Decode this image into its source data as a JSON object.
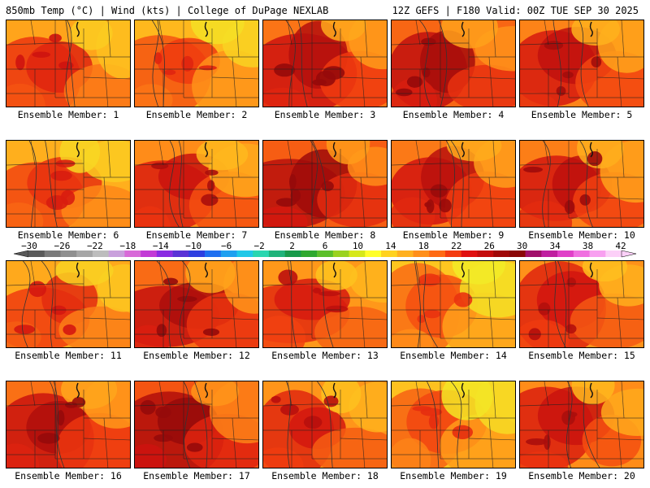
{
  "header": {
    "left": "850mb Temp (°C) | Wind (kts) | College of DuPage NEXLAB",
    "right": "12Z GEFS | F180 Valid: 00Z TUE SEP 30 2025"
  },
  "members": [
    {
      "label": "Ensemble Member: 1",
      "warmth": 0.62
    },
    {
      "label": "Ensemble Member: 2",
      "warmth": 0.55
    },
    {
      "label": "Ensemble Member: 3",
      "warmth": 0.75
    },
    {
      "label": "Ensemble Member: 4",
      "warmth": 0.78
    },
    {
      "label": "Ensemble Member: 5",
      "warmth": 0.72
    },
    {
      "label": "Ensemble Member: 6",
      "warmth": 0.58
    },
    {
      "label": "Ensemble Member: 7",
      "warmth": 0.7
    },
    {
      "label": "Ensemble Member: 8",
      "warmth": 0.8
    },
    {
      "label": "Ensemble Member: 9",
      "warmth": 0.74
    },
    {
      "label": "Ensemble Member: 10",
      "warmth": 0.73
    },
    {
      "label": "Ensemble Member: 11",
      "warmth": 0.6
    },
    {
      "label": "Ensemble Member: 12",
      "warmth": 0.77
    },
    {
      "label": "Ensemble Member: 13",
      "warmth": 0.66
    },
    {
      "label": "Ensemble Member: 14",
      "warmth": 0.5
    },
    {
      "label": "Ensemble Member: 15",
      "warmth": 0.68
    },
    {
      "label": "Ensemble Member: 16",
      "warmth": 0.76
    },
    {
      "label": "Ensemble Member: 17",
      "warmth": 0.82
    },
    {
      "label": "Ensemble Member: 18",
      "warmth": 0.67
    },
    {
      "label": "Ensemble Member: 19",
      "warmth": 0.52
    },
    {
      "label": "Ensemble Member: 20",
      "warmth": 0.7
    }
  ],
  "colorbar": {
    "labels": [
      "−30",
      "−26",
      "−22",
      "−18",
      "−14",
      "−10",
      "−6",
      "−2",
      "2",
      "6",
      "10",
      "14",
      "18",
      "22",
      "26",
      "30",
      "34",
      "38",
      "42"
    ],
    "colors": [
      "#5a5a5a",
      "#7a7a7a",
      "#8f8f8f",
      "#a6a6a6",
      "#bdbdbd",
      "#c9a0dc",
      "#d86ad8",
      "#c23bd6",
      "#8a2be2",
      "#5a32d6",
      "#2f3fe0",
      "#1f6ff0",
      "#1fa0f0",
      "#20c8e8",
      "#2ad6b0",
      "#1fb37a",
      "#179a4a",
      "#2fa82f",
      "#5cbf2a",
      "#9ad21f",
      "#d6e81a",
      "#ffff2a",
      "#ffd21f",
      "#ffb01f",
      "#ff8f1a",
      "#ff6a14",
      "#f43b10",
      "#e01010",
      "#c40c0c",
      "#a00808",
      "#8a0606",
      "#a0106a",
      "#c020a0",
      "#e040c8",
      "#f070e0",
      "#f8a0f0",
      "#fcd0f8"
    ]
  }
}
